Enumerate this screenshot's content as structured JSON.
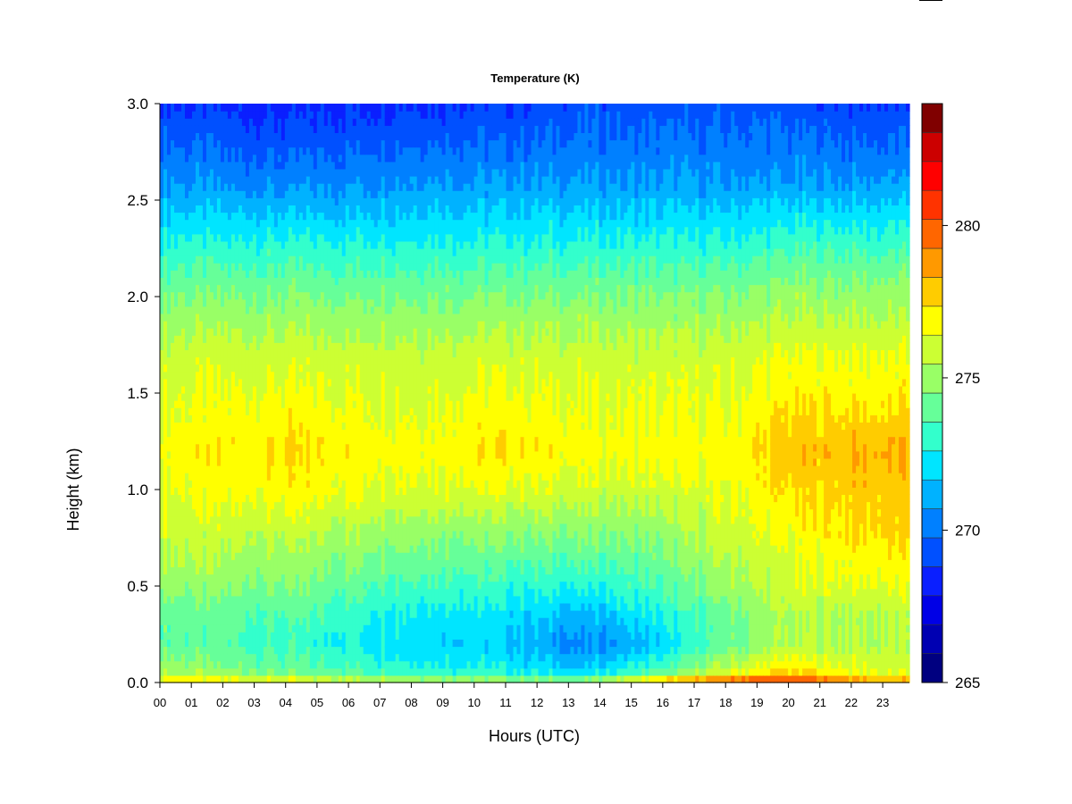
{
  "chart_data": {
    "type": "heatmap",
    "title": "Temperature (K)",
    "xlabel": "Hours (UTC)",
    "ylabel": "Height (km)",
    "x_ticks": [
      "00",
      "01",
      "02",
      "03",
      "04",
      "05",
      "06",
      "07",
      "08",
      "09",
      "10",
      "11",
      "12",
      "13",
      "14",
      "15",
      "16",
      "17",
      "18",
      "19",
      "20",
      "21",
      "22",
      "23"
    ],
    "xlim": [
      0,
      23.85
    ],
    "y_ticks": [
      "0.0",
      "0.5",
      "1.0",
      "1.5",
      "2.0",
      "2.5",
      "3.0"
    ],
    "ylim": [
      0.0,
      3.0
    ],
    "colorbar": {
      "ticks": [
        "265",
        "270",
        "275",
        "280"
      ],
      "range": [
        265,
        284
      ],
      "step": 1,
      "colors": [
        "#000080",
        "#0000b2",
        "#0000e6",
        "#0a1fff",
        "#0050ff",
        "#0080ff",
        "#00b2ff",
        "#00e5ff",
        "#33ffcc",
        "#66ff99",
        "#99ff66",
        "#ccff33",
        "#ffff00",
        "#ffcc00",
        "#ff9900",
        "#ff6600",
        "#ff3300",
        "#ff0000",
        "#cc0000",
        "#800000"
      ]
    },
    "profiles": [
      {
        "hour": 0,
        "height": [
          0.0,
          0.03,
          0.06,
          0.2,
          0.35,
          0.5,
          0.75,
          1.0,
          1.2,
          1.4,
          1.7,
          2.0,
          2.3,
          2.6,
          3.0
        ],
        "temperature": [
          278.5,
          277,
          276,
          274.5,
          274.5,
          275.5,
          276.5,
          277,
          277.5,
          277,
          276.5,
          275,
          273,
          271,
          269
        ]
      },
      {
        "hour": 4,
        "height": [
          0.0,
          0.03,
          0.06,
          0.2,
          0.35,
          0.5,
          0.75,
          1.0,
          1.2,
          1.4,
          1.7,
          2.0,
          2.3,
          2.6,
          3.0
        ],
        "temperature": [
          277.5,
          276,
          274.5,
          273.5,
          274,
          275,
          276,
          277.5,
          278,
          277.5,
          276.5,
          275,
          273,
          270.5,
          268.5
        ]
      },
      {
        "hour": 8,
        "height": [
          0.0,
          0.03,
          0.06,
          0.2,
          0.35,
          0.5,
          0.75,
          1.0,
          1.2,
          1.4,
          1.7,
          2.0,
          2.3,
          2.6,
          3.0
        ],
        "temperature": [
          276.5,
          275,
          273.5,
          272.5,
          273,
          274,
          275.5,
          277,
          277.5,
          277,
          276.5,
          275,
          273,
          271,
          269
        ]
      },
      {
        "hour": 11,
        "height": [
          0.0,
          0.03,
          0.06,
          0.2,
          0.35,
          0.5,
          0.75,
          1.0,
          1.2,
          1.4,
          1.7,
          2.0,
          2.3,
          2.6,
          3.0
        ],
        "temperature": [
          276,
          274.5,
          273,
          272,
          272.5,
          273.5,
          275,
          277,
          278,
          277.5,
          276.5,
          275,
          273,
          271,
          269
        ]
      },
      {
        "hour": 13.5,
        "height": [
          0.0,
          0.03,
          0.06,
          0.2,
          0.35,
          0.5,
          0.75,
          1.0,
          1.2,
          1.4,
          1.7,
          2.0,
          2.3,
          2.6,
          3.0
        ],
        "temperature": [
          275.5,
          274,
          272,
          270.5,
          271.5,
          273,
          275,
          276.5,
          277.5,
          277,
          276.5,
          275,
          273,
          271,
          269.5
        ]
      },
      {
        "hour": 16,
        "height": [
          0.0,
          0.03,
          0.06,
          0.2,
          0.35,
          0.5,
          0.75,
          1.0,
          1.2,
          1.4,
          1.7,
          2.0,
          2.3,
          2.6,
          3.0
        ],
        "temperature": [
          279,
          277,
          274,
          272,
          273,
          274,
          275,
          276.5,
          277.5,
          277,
          276.5,
          275,
          273,
          271,
          269.5
        ]
      },
      {
        "hour": 18,
        "height": [
          0.0,
          0.03,
          0.06,
          0.2,
          0.35,
          0.5,
          0.75,
          1.0,
          1.2,
          1.4,
          1.7,
          2.0,
          2.3,
          2.6,
          3.0
        ],
        "temperature": [
          281,
          279,
          276.5,
          274.5,
          274.5,
          275.5,
          276.5,
          277,
          277.5,
          277,
          276.5,
          275,
          273,
          271,
          269.5
        ]
      },
      {
        "hour": 20,
        "height": [
          0.0,
          0.03,
          0.06,
          0.2,
          0.35,
          0.5,
          0.75,
          1.0,
          1.2,
          1.4,
          1.7,
          2.0,
          2.3,
          2.6,
          3.0
        ],
        "temperature": [
          282,
          280,
          278,
          276,
          276,
          276.5,
          277,
          278,
          278.5,
          278,
          277,
          275.5,
          273.5,
          271,
          269.5
        ]
      },
      {
        "hour": 22,
        "height": [
          0.0,
          0.03,
          0.06,
          0.2,
          0.35,
          0.5,
          0.75,
          1.0,
          1.2,
          1.4,
          1.7,
          2.0,
          2.3,
          2.6,
          3.0
        ],
        "temperature": [
          280,
          278.5,
          277,
          276,
          276,
          277,
          278,
          278.5,
          279,
          278,
          277,
          275.5,
          273.5,
          271,
          269
        ]
      },
      {
        "hour": 23.85,
        "height": [
          0.0,
          0.03,
          0.06,
          0.2,
          0.35,
          0.5,
          0.75,
          1.0,
          1.2,
          1.4,
          1.7,
          2.0,
          2.3,
          2.6,
          3.0
        ],
        "temperature": [
          279,
          278,
          276.5,
          276,
          276,
          277,
          278,
          278.5,
          279,
          278,
          277,
          275.5,
          273.5,
          271,
          269
        ]
      }
    ]
  }
}
